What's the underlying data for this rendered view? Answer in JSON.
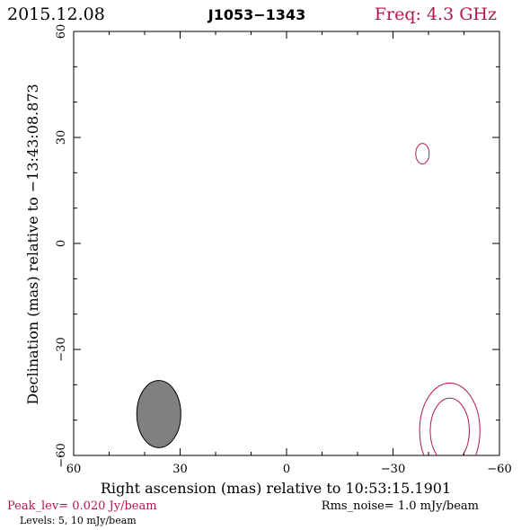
{
  "header": {
    "date": "2015.12.08",
    "source": "J1053−1343",
    "freq": "Freq: 4.3 GHz"
  },
  "footer": {
    "peak": "Peak_lev=  0.020 Jy/beam",
    "rms": "Rms_noise=  1.0 mJy/beam",
    "levels": "Levels:  5,  10 mJy/beam"
  },
  "colors": {
    "accent": "#b0184a",
    "axis": "#000000",
    "beam_fill": "#808080"
  },
  "chart_data": {
    "type": "contour",
    "xlabel": "Right ascension (mas) relative to 10:53:15.1901",
    "ylabel": "Declination (mas) relative to −13:43:08.873",
    "xlim": [
      60,
      -60
    ],
    "ylim": [
      -60,
      60
    ],
    "x_ticks": [
      60,
      30,
      0,
      -30,
      -60
    ],
    "y_ticks": [
      -60,
      -30,
      0,
      30,
      60
    ],
    "x_tick_labels": [
      "60",
      "30",
      "0",
      "−30",
      "−60"
    ],
    "y_tick_labels": [
      "−60",
      "−30",
      "0",
      "30",
      "60"
    ],
    "contour_levels_mJy_per_beam": [
      5,
      10
    ],
    "contours": [
      {
        "name": "outer",
        "cx": -46,
        "cy": -53,
        "rx": 8.5,
        "ry": 13.5
      },
      {
        "name": "inner",
        "cx": -46,
        "cy": -53,
        "rx": 5.5,
        "ry": 9.2
      },
      {
        "name": "small",
        "cx": -38.3,
        "cy": 25.4,
        "rx": 1.9,
        "ry": 2.9
      }
    ],
    "beam": {
      "cx": 36,
      "cy": -48.3,
      "rx": 6.2,
      "ry": 9.5
    }
  }
}
